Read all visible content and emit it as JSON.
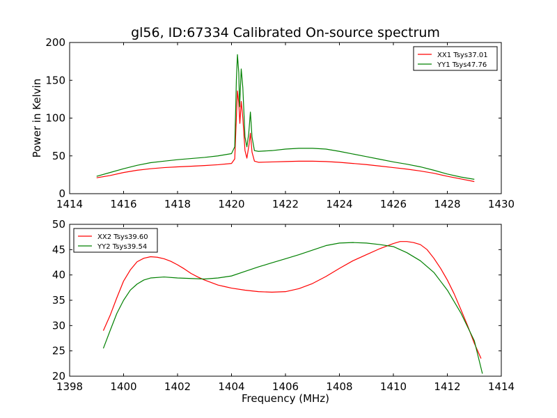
{
  "figure": {
    "title": "gl56, ID:67334 Calibrated On-source spectrum"
  },
  "chart_data": [
    {
      "type": "line",
      "title": "gl56, ID:67334 Calibrated On-source spectrum",
      "xlabel": "",
      "ylabel": "Power in Kelvin",
      "xlim": [
        1414,
        1430
      ],
      "ylim": [
        0,
        200
      ],
      "xticks": [
        1414,
        1416,
        1418,
        1420,
        1422,
        1424,
        1426,
        1428,
        1430
      ],
      "yticks": [
        0,
        50,
        100,
        150,
        200
      ],
      "grid": false,
      "legend_position": "top-right",
      "series": [
        {
          "name": "XX1 Tsys37.01",
          "color": "#ff0000",
          "points": [
            [
              1415.0,
              21
            ],
            [
              1415.5,
              24
            ],
            [
              1416.0,
              28
            ],
            [
              1416.5,
              31
            ],
            [
              1417.0,
              33
            ],
            [
              1417.5,
              34.5
            ],
            [
              1418.0,
              35.5
            ],
            [
              1418.5,
              36.3
            ],
            [
              1419.0,
              37.2
            ],
            [
              1419.5,
              38.3
            ],
            [
              1420.0,
              40
            ],
            [
              1420.12,
              46
            ],
            [
              1420.18,
              100
            ],
            [
              1420.22,
              136
            ],
            [
              1420.27,
              120
            ],
            [
              1420.31,
              93
            ],
            [
              1420.36,
              122
            ],
            [
              1420.42,
              100
            ],
            [
              1420.5,
              57
            ],
            [
              1420.57,
              47
            ],
            [
              1420.65,
              65
            ],
            [
              1420.7,
              80
            ],
            [
              1420.76,
              55
            ],
            [
              1420.85,
              43
            ],
            [
              1421.0,
              41.5
            ],
            [
              1421.5,
              42
            ],
            [
              1422.0,
              42.5
            ],
            [
              1422.5,
              43
            ],
            [
              1423.0,
              43
            ],
            [
              1423.5,
              42.5
            ],
            [
              1424.0,
              41.5
            ],
            [
              1424.5,
              40
            ],
            [
              1425.0,
              38.5
            ],
            [
              1425.5,
              36.5
            ],
            [
              1426.0,
              34.5
            ],
            [
              1426.5,
              32.5
            ],
            [
              1427.0,
              30
            ],
            [
              1427.5,
              27
            ],
            [
              1428.0,
              23
            ],
            [
              1428.5,
              19.5
            ],
            [
              1429.0,
              16
            ]
          ]
        },
        {
          "name": "YY1 Tsys47.76",
          "color": "#008000",
          "points": [
            [
              1415.0,
              23
            ],
            [
              1415.5,
              28
            ],
            [
              1416.0,
              33
            ],
            [
              1416.5,
              37.5
            ],
            [
              1417.0,
              41
            ],
            [
              1417.5,
              43
            ],
            [
              1418.0,
              45
            ],
            [
              1418.5,
              46.5
            ],
            [
              1419.0,
              48
            ],
            [
              1419.5,
              50
            ],
            [
              1420.0,
              53
            ],
            [
              1420.12,
              62
            ],
            [
              1420.18,
              150
            ],
            [
              1420.22,
              184
            ],
            [
              1420.27,
              160
            ],
            [
              1420.3,
              115
            ],
            [
              1420.36,
              165
            ],
            [
              1420.42,
              140
            ],
            [
              1420.5,
              75
            ],
            [
              1420.57,
              62
            ],
            [
              1420.64,
              80
            ],
            [
              1420.7,
              108
            ],
            [
              1420.76,
              75
            ],
            [
              1420.85,
              57
            ],
            [
              1421.0,
              56
            ],
            [
              1421.5,
              57
            ],
            [
              1422.0,
              59
            ],
            [
              1422.5,
              60
            ],
            [
              1423.0,
              60
            ],
            [
              1423.5,
              59
            ],
            [
              1424.0,
              56
            ],
            [
              1424.5,
              52.5
            ],
            [
              1425.0,
              49
            ],
            [
              1425.5,
              45.5
            ],
            [
              1426.0,
              42
            ],
            [
              1426.5,
              39
            ],
            [
              1427.0,
              35.5
            ],
            [
              1427.5,
              31
            ],
            [
              1428.0,
              26
            ],
            [
              1428.5,
              22
            ],
            [
              1429.0,
              19
            ]
          ]
        }
      ]
    },
    {
      "type": "line",
      "title": "",
      "xlabel": "Frequency (MHz)",
      "ylabel": "",
      "xlim": [
        1398,
        1414
      ],
      "ylim": [
        20,
        50
      ],
      "xticks": [
        1398,
        1400,
        1402,
        1404,
        1406,
        1408,
        1410,
        1412,
        1414
      ],
      "yticks": [
        20,
        25,
        30,
        35,
        40,
        45,
        50
      ],
      "grid": false,
      "legend_position": "top-left",
      "series": [
        {
          "name": "XX2 Tsys39.60",
          "color": "#ff0000",
          "points": [
            [
              1399.25,
              29
            ],
            [
              1399.5,
              32
            ],
            [
              1399.75,
              35.5
            ],
            [
              1400.0,
              38.8
            ],
            [
              1400.25,
              41
            ],
            [
              1400.5,
              42.6
            ],
            [
              1400.75,
              43.3
            ],
            [
              1401.0,
              43.6
            ],
            [
              1401.25,
              43.5
            ],
            [
              1401.5,
              43.2
            ],
            [
              1401.75,
              42.7
            ],
            [
              1402.0,
              42
            ],
            [
              1402.25,
              41.2
            ],
            [
              1402.5,
              40.3
            ],
            [
              1402.75,
              39.6
            ],
            [
              1403.0,
              39
            ],
            [
              1403.25,
              38.5
            ],
            [
              1403.5,
              38
            ],
            [
              1403.75,
              37.7
            ],
            [
              1404.0,
              37.4
            ],
            [
              1404.5,
              37
            ],
            [
              1405.0,
              36.7
            ],
            [
              1405.5,
              36.6
            ],
            [
              1406.0,
              36.7
            ],
            [
              1406.5,
              37.3
            ],
            [
              1407.0,
              38.3
            ],
            [
              1407.5,
              39.7
            ],
            [
              1408.0,
              41.3
            ],
            [
              1408.5,
              42.8
            ],
            [
              1409.0,
              44
            ],
            [
              1409.5,
              45.2
            ],
            [
              1410.0,
              46.2
            ],
            [
              1410.25,
              46.6
            ],
            [
              1410.5,
              46.6
            ],
            [
              1410.75,
              46.4
            ],
            [
              1411.0,
              46
            ],
            [
              1411.25,
              45
            ],
            [
              1411.5,
              43.3
            ],
            [
              1411.75,
              41.3
            ],
            [
              1412.0,
              39
            ],
            [
              1412.25,
              36.3
            ],
            [
              1412.5,
              33.2
            ],
            [
              1412.75,
              30
            ],
            [
              1413.0,
              26.5
            ],
            [
              1413.25,
              23.5
            ]
          ]
        },
        {
          "name": "YY2 Tsys39.54",
          "color": "#008000",
          "points": [
            [
              1399.25,
              25.5
            ],
            [
              1399.5,
              29
            ],
            [
              1399.75,
              32.4
            ],
            [
              1400.0,
              35
            ],
            [
              1400.25,
              37
            ],
            [
              1400.5,
              38.2
            ],
            [
              1400.75,
              39
            ],
            [
              1401.0,
              39.4
            ],
            [
              1401.5,
              39.6
            ],
            [
              1402.0,
              39.4
            ],
            [
              1402.5,
              39.3
            ],
            [
              1403.0,
              39.2
            ],
            [
              1403.5,
              39.4
            ],
            [
              1404.0,
              39.8
            ],
            [
              1404.5,
              40.7
            ],
            [
              1405.0,
              41.6
            ],
            [
              1405.5,
              42.4
            ],
            [
              1406.0,
              43.2
            ],
            [
              1406.5,
              44
            ],
            [
              1407.0,
              44.9
            ],
            [
              1407.5,
              45.8
            ],
            [
              1408.0,
              46.3
            ],
            [
              1408.5,
              46.4
            ],
            [
              1409.0,
              46.3
            ],
            [
              1409.5,
              46
            ],
            [
              1410.0,
              45.6
            ],
            [
              1410.5,
              44.4
            ],
            [
              1411.0,
              42.8
            ],
            [
              1411.5,
              40.5
            ],
            [
              1412.0,
              37
            ],
            [
              1412.5,
              32.5
            ],
            [
              1413.0,
              27
            ],
            [
              1413.3,
              20.5
            ]
          ]
        }
      ]
    }
  ]
}
